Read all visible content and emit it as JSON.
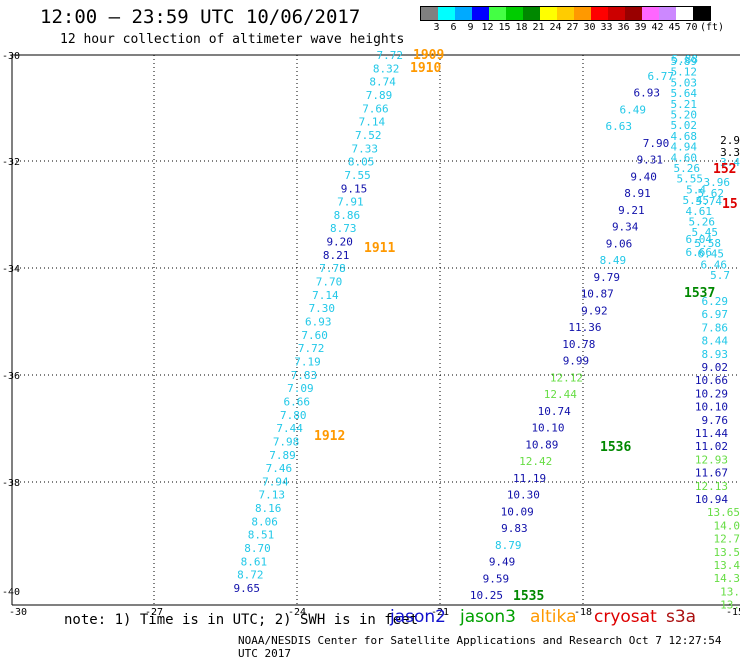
{
  "header": {
    "title": "12:00 — 23:59 UTC 10/06/2017",
    "subtitle": "12 hour collection of altimeter wave heights"
  },
  "colorbar": {
    "labels": [
      "3",
      "6",
      "9",
      "12",
      "15",
      "18",
      "21",
      "24",
      "27",
      "30",
      "33",
      "36",
      "39",
      "42",
      "45",
      "70",
      "(ft)"
    ],
    "colors": [
      "#808080",
      "#00ffff",
      "#00aaff",
      "#0000ff",
      "#44ff44",
      "#00cc00",
      "#008800",
      "#ffff00",
      "#ffcc00",
      "#ff9900",
      "#ff0000",
      "#cc0000",
      "#990000",
      "#ff66ff",
      "#cc88ff",
      "#ffffff",
      "#000000"
    ]
  },
  "axes": {
    "y_ticks": [
      "-30",
      "-32",
      "-34",
      "-36",
      "-38",
      "-40"
    ],
    "x_ticks": [
      "-30",
      "-27",
      "-24",
      "-21",
      "-18",
      "-15"
    ]
  },
  "labels": {
    "note": "note: 1) Time is in UTC; 2) SWH is in feet",
    "credit": "NOAA/NESDIS Center for Satellite Applications and Research   Oct  7 12:27:54 UTC 2017"
  },
  "legend": [
    {
      "name": "jason2",
      "color": "#1010cc"
    },
    {
      "name": "jason3",
      "color": "#00a000"
    },
    {
      "name": "altika",
      "color": "#ff9900"
    },
    {
      "name": "cryosat",
      "color": "#dd0000"
    },
    {
      "name": "s3a",
      "color": "#aa1010"
    }
  ],
  "colors": {
    "cyan": "#22c8e8",
    "navy": "#1010aa",
    "lightgreen": "#66dd44",
    "green": "#008800",
    "orange": "#ff9900",
    "red": "#dd0000"
  },
  "tracks": {
    "left_track": [
      "7.72",
      "8.32",
      "8.74",
      "7.89",
      "7.66",
      "7.14",
      "7.52",
      "7.33",
      "8.05",
      "7.55",
      "9.15",
      "7.91",
      "8.86",
      "8.73",
      "9.20",
      "8.21",
      "7.78",
      "7.70",
      "7.14",
      "7.30",
      "6.93",
      "7.60",
      "7.72",
      "7.19",
      "7.83",
      "7.09",
      "6.66",
      "7.80",
      "7.44",
      "7.98",
      "7.89",
      "7.46",
      "7.94",
      "7.13",
      "8.16",
      "8.06",
      "8.51",
      "8.70",
      "8.61",
      "8.72",
      "9.65"
    ],
    "left_colors": [
      "c",
      "c",
      "c",
      "c",
      "c",
      "c",
      "c",
      "c",
      "c",
      "c",
      "n",
      "c",
      "c",
      "c",
      "n",
      "n",
      "c",
      "c",
      "c",
      "c",
      "c",
      "c",
      "c",
      "c",
      "c",
      "c",
      "c",
      "c",
      "c",
      "c",
      "c",
      "c",
      "c",
      "c",
      "c",
      "c",
      "c",
      "c",
      "c",
      "c",
      "n"
    ],
    "middle_track": [
      "5.88",
      "6.77",
      "6.93",
      "6.49",
      "6.63",
      "7.90",
      "9.31",
      "9.40",
      "8.91",
      "9.21",
      "9.34",
      "9.06",
      "8.49",
      "9.79",
      "10.87",
      "9.92",
      "11.36",
      "10.78",
      "9.99",
      "12.12",
      "12.44",
      "10.74",
      "10.10",
      "10.89",
      "12.42",
      "11.19",
      "10.30",
      "10.09",
      "9.83",
      "8.79",
      "9.49",
      "9.59",
      "10.25"
    ],
    "middle_colors": [
      "c",
      "c",
      "n",
      "c",
      "c",
      "n",
      "n",
      "n",
      "n",
      "n",
      "n",
      "n",
      "c",
      "n",
      "n",
      "n",
      "n",
      "n",
      "n",
      "lg",
      "lg",
      "n",
      "n",
      "n",
      "lg",
      "n",
      "n",
      "n",
      "n",
      "c",
      "n",
      "n",
      "n"
    ],
    "right_top": [
      "5.89",
      "5.12",
      "5.03",
      "5.64",
      "5.21",
      "5.20",
      "5.02",
      "4.68",
      "4.94",
      "4.60",
      "5.26",
      "5.55",
      "5.4",
      "5.45",
      "4.61",
      "5.26",
      "5.45",
      "5.58",
      "6.45",
      "6.46",
      "5.7"
    ],
    "right_bottom": [
      "6.29",
      "6.97",
      "7.86",
      "8.44",
      "8.93",
      "9.02",
      "10.66",
      "10.29",
      "10.10",
      "9.76",
      "11.44",
      "11.02",
      "12.93",
      "11.67",
      "12.13",
      "10.94",
      "13.65",
      "14.0",
      "12.7",
      "13.5",
      "13.4",
      "14.3",
      "13.",
      "13."
    ],
    "right_bottom_colors": [
      "c",
      "c",
      "c",
      "c",
      "c",
      "n",
      "n",
      "n",
      "n",
      "n",
      "n",
      "n",
      "lg",
      "n",
      "lg",
      "n",
      "lg",
      "lg",
      "lg",
      "lg",
      "lg",
      "lg",
      "lg",
      "lg"
    ],
    "edge_values": [
      "2.9",
      "3.3",
      "3.4",
      "3.96",
      "5.62",
      "5.74",
      "6.04",
      "6.66"
    ],
    "time_labels": [
      {
        "text": "1909",
        "color": "o"
      },
      {
        "text": "1910",
        "color": "o"
      },
      {
        "text": "1911",
        "color": "o"
      },
      {
        "text": "1912",
        "color": "o"
      },
      {
        "text": "1537",
        "color": "g"
      },
      {
        "text": "1536",
        "color": "g"
      },
      {
        "text": "1535",
        "color": "g"
      },
      {
        "text": "152",
        "color": "r"
      },
      {
        "text": "15",
        "color": "r"
      }
    ]
  }
}
